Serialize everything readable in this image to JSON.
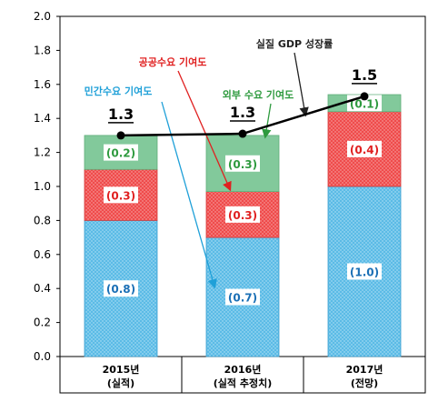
{
  "chart_data": {
    "type": "bar",
    "stacked": true,
    "categories": [
      {
        "line1": "2015년",
        "line2": "(실적)"
      },
      {
        "line1": "2016년",
        "line2": "(실적 추정치)"
      },
      {
        "line1": "2017년",
        "line2": "(전망)"
      }
    ],
    "series": [
      {
        "name": "민간수요 기여도",
        "values": [
          0.8,
          0.7,
          1.0
        ],
        "labels": [
          "(0.8)",
          "(0.7)",
          "(1.0)"
        ],
        "color": "#58b8e3",
        "pattern": "dots",
        "label_color": "#1a6fb5"
      },
      {
        "name": "공공수요 기여도",
        "values": [
          0.3,
          0.27,
          0.44
        ],
        "labels": [
          "(0.3)",
          "(0.3)",
          "(0.4)"
        ],
        "color": "#ee4a4a",
        "pattern": "dots",
        "label_color": "#e02020"
      },
      {
        "name": "외부 수요 기여도",
        "values": [
          0.2,
          0.33,
          0.1
        ],
        "labels": [
          "(0.2)",
          "(0.3)",
          "(0.1)"
        ],
        "color": "#7fc899",
        "pattern": "solid",
        "label_color": "#2e9a3e"
      }
    ],
    "line": {
      "name": "실질 GDP 성장률",
      "values": [
        1.3,
        1.31,
        1.53
      ],
      "labels": [
        "1.3",
        "1.3",
        "1.5"
      ]
    },
    "ylim": [
      0,
      2.0
    ],
    "yticks": [
      "0.0",
      "0.2",
      "0.4",
      "0.6",
      "0.8",
      "1.0",
      "1.2",
      "1.4",
      "1.6",
      "1.8",
      "2.0"
    ],
    "annotations": {
      "public": {
        "text": "공공수요 기여도",
        "color": "#e02020"
      },
      "private": {
        "text": "민간수요 기여도",
        "color": "#1fa0d8"
      },
      "external": {
        "text": "외부 수요 기여도",
        "color": "#2e9a3e"
      },
      "gdp": {
        "text": "실질 GDP 성장률",
        "color": "#222222"
      }
    },
    "grid": false
  }
}
